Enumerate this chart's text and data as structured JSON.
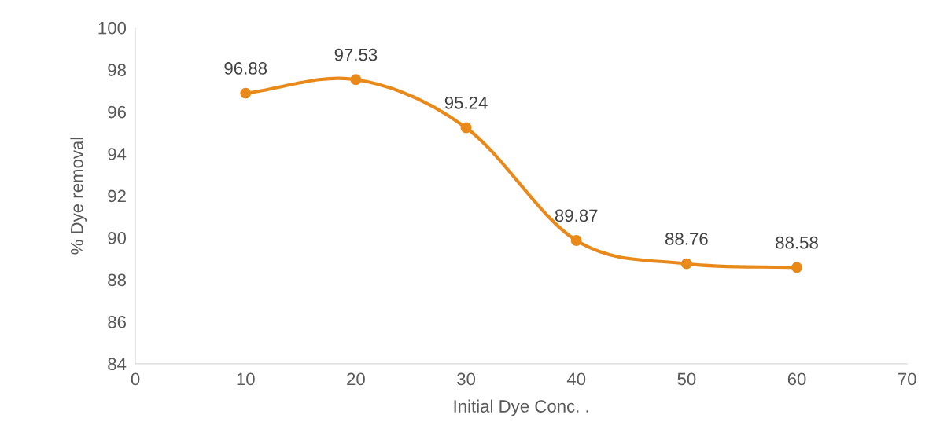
{
  "chart_data": {
    "type": "line",
    "xlabel": "Initial Dye Conc. .",
    "ylabel": "% Dye removal",
    "x": [
      10,
      20,
      30,
      40,
      50,
      60
    ],
    "series": [
      {
        "color": "#e8891a",
        "values": [
          96.88,
          97.53,
          95.24,
          89.87,
          88.76,
          88.58
        ]
      }
    ],
    "xlim": [
      0,
      70
    ],
    "xticks": [
      0,
      10,
      20,
      30,
      40,
      50,
      60,
      70
    ],
    "ylim": [
      84,
      100
    ],
    "yticks": [
      84,
      86,
      88,
      90,
      92,
      94,
      96,
      98,
      100
    ],
    "grid": false,
    "marker": "circle",
    "line_style": "solid",
    "data_labels": true
  }
}
